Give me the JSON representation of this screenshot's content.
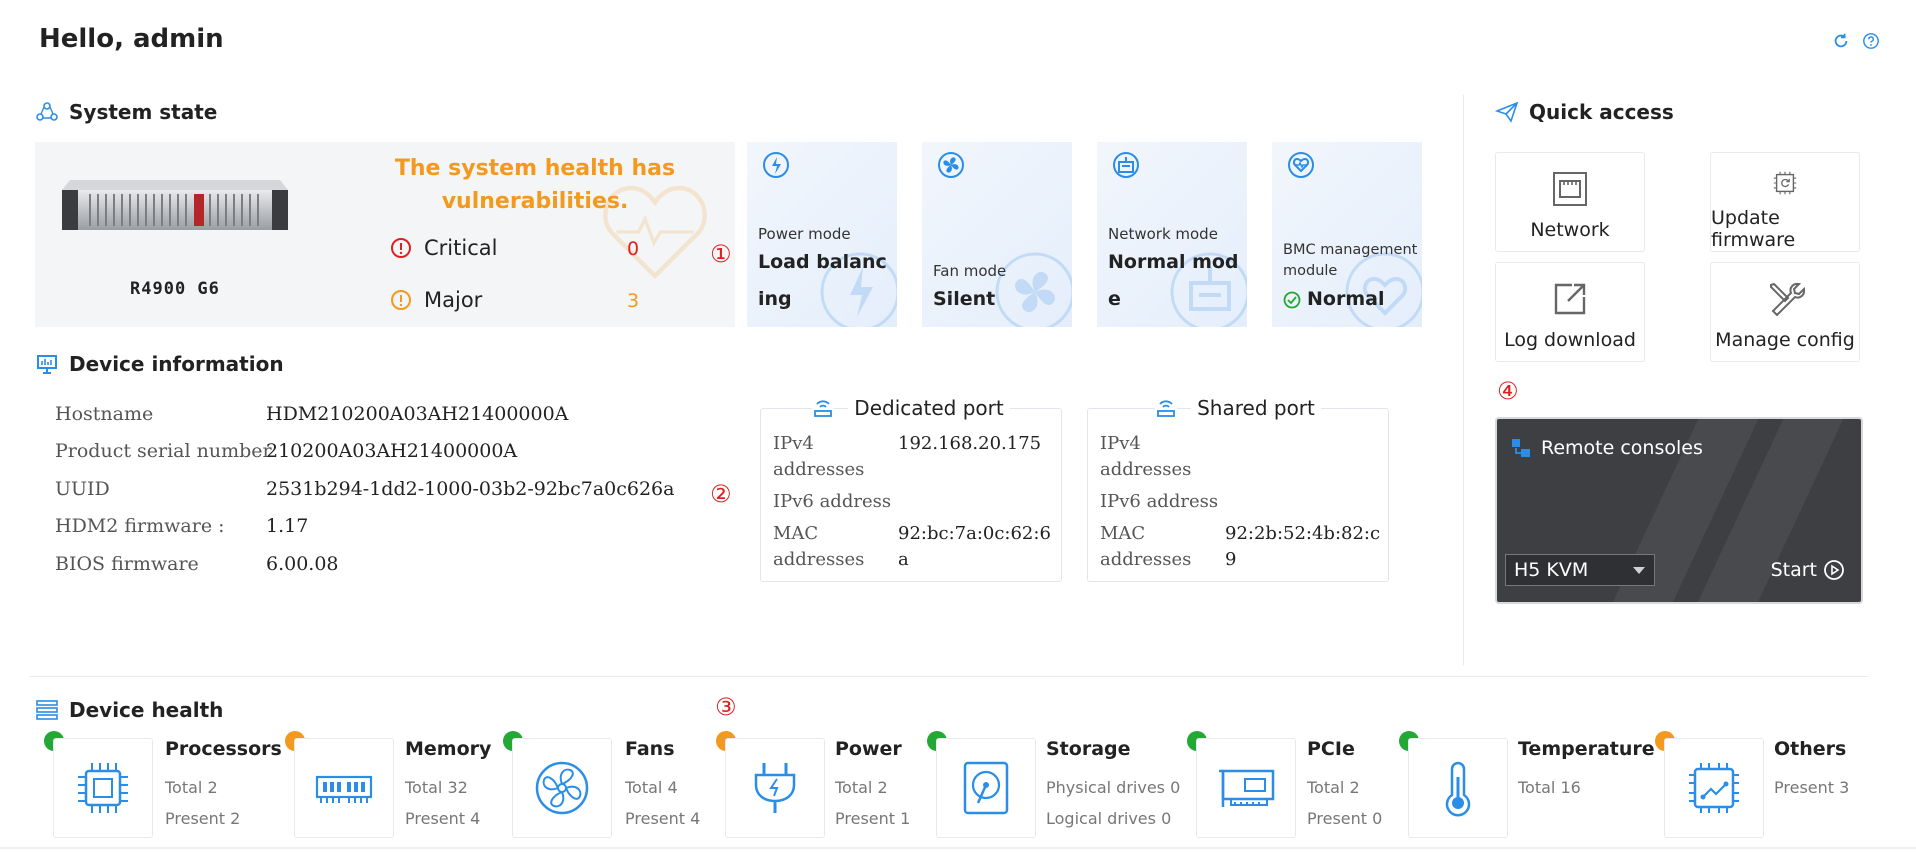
{
  "header": {
    "greeting": "Hello, admin"
  },
  "system_state": {
    "title": "System state",
    "model": "R4900 G6",
    "health_message": "The system health has vulnerabilities.",
    "alarms": [
      {
        "label": "Critical",
        "count": "0",
        "color": "#e02020"
      },
      {
        "label": "Major",
        "count": "3",
        "color": "#f39a1e"
      }
    ],
    "callout": "①"
  },
  "modes": [
    {
      "label": "Power mode",
      "value": "Load balancing",
      "icon": "power-mode-icon"
    },
    {
      "label": "Fan mode",
      "value": "Silent",
      "icon": "fan-mode-icon"
    },
    {
      "label": "Network mode",
      "value": "Normal mode",
      "icon": "network-mode-icon"
    },
    {
      "label": "BMC management module",
      "value": "Normal",
      "icon": "bmc-module-icon",
      "status": "ok"
    }
  ],
  "device_info": {
    "title": "Device information",
    "rows": [
      {
        "label": "Hostname",
        "value": "HDM210200A03AH21400000A"
      },
      {
        "label": "Product serial number",
        "value": "210200A03AH21400000A"
      },
      {
        "label": "UUID",
        "value": "2531b294-1dd2-1000-03b2-92bc7a0c626a"
      },
      {
        "label": "HDM2 firmware :",
        "value": "1.17"
      },
      {
        "label": "BIOS firmware",
        "value": "6.00.08"
      }
    ],
    "callout": "②",
    "ports": [
      {
        "title": "Dedicated port",
        "rows": [
          {
            "label": "IPv4 addresses",
            "value": "192.168.20.175"
          },
          {
            "label": "IPv6 address",
            "value": ""
          },
          {
            "label": "MAC addresses",
            "value": "92:bc:7a:0c:62:6a"
          }
        ]
      },
      {
        "title": "Shared port",
        "rows": [
          {
            "label": "IPv4 addresses",
            "value": ""
          },
          {
            "label": "IPv6 address",
            "value": ""
          },
          {
            "label": "MAC addresses",
            "value": "92:2b:52:4b:82:c9"
          }
        ]
      }
    ]
  },
  "quick_access": {
    "title": "Quick access",
    "tiles": [
      "Network",
      "Update firmware",
      "Log download",
      "Manage config"
    ],
    "callout": "④",
    "remote": {
      "title": "Remote consoles",
      "selected": "H5 KVM",
      "start": "Start"
    }
  },
  "device_health": {
    "title": "Device health",
    "callout": "③",
    "items": [
      {
        "name": "Processors",
        "lines": [
          "Total 2",
          "Present 2"
        ],
        "status": "#23a836"
      },
      {
        "name": "Memory",
        "lines": [
          "Total 32",
          "Present 4"
        ],
        "status": "#f39a1e"
      },
      {
        "name": "Fans",
        "lines": [
          "Total 4",
          "Present 4"
        ],
        "status": "#23a836"
      },
      {
        "name": "Power",
        "lines": [
          "Total 2",
          "Present 1"
        ],
        "status": "#f39a1e"
      },
      {
        "name": "Storage",
        "lines": [
          "Physical drives 0",
          "Logical drives 0"
        ],
        "status": "#23a836"
      },
      {
        "name": "PCIe",
        "lines": [
          "Total 2",
          "Present 0"
        ],
        "status": "#23a836"
      },
      {
        "name": "Temperature",
        "lines": [
          "Total 16"
        ],
        "status": "#23a836"
      },
      {
        "name": "Others",
        "lines": [
          "Present 3"
        ],
        "status": "#f39a1e"
      }
    ]
  }
}
